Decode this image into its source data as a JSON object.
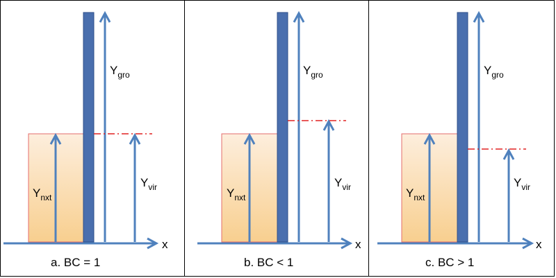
{
  "diagram": {
    "colors": {
      "arrow": "#4f81bd",
      "wall": "#4a6fae",
      "wall_stroke": "#2f4f8a",
      "box_top": "#fdeedd",
      "box_bottom": "#f8cf8f",
      "box_border": "#e46c6c",
      "dashed_line": "#e02020"
    },
    "labels": {
      "y_main": "Y",
      "sub_gro": "gro",
      "sub_nxt": "nxt",
      "sub_vir": "vir",
      "x_axis": "x"
    },
    "panels": [
      {
        "caption": "a. BC = 1",
        "bc_relation": "equal"
      },
      {
        "caption": "b. BC < 1",
        "bc_relation": "less"
      },
      {
        "caption": "c. BC > 1",
        "bc_relation": "greater"
      }
    ]
  }
}
